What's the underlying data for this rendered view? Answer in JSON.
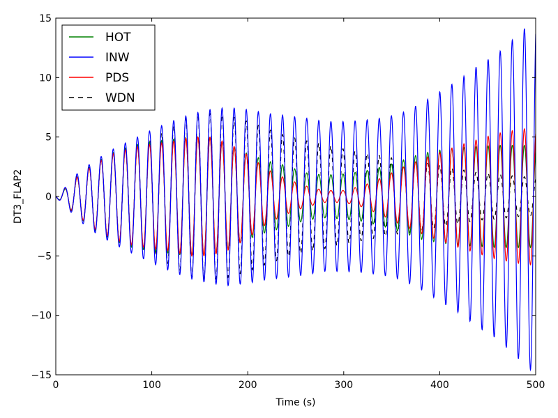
{
  "chart_data": {
    "type": "line",
    "title": "",
    "xlabel": "Time (s)",
    "ylabel": "DT3_FLAP2",
    "xlim": [
      0,
      500
    ],
    "ylim": [
      -15,
      15
    ],
    "xticks": [
      0,
      100,
      200,
      300,
      400,
      500
    ],
    "yticks": [
      -15,
      -10,
      -5,
      0,
      5,
      10,
      15
    ],
    "ytick_labels": [
      "−15",
      "−10",
      "−5",
      "0",
      "5",
      "10",
      "15"
    ],
    "grid": false,
    "legend_position": "top-left",
    "period_s": 12.6,
    "series": [
      {
        "name": "HOT",
        "color": "#008000",
        "dash": "solid",
        "envelope": [
          [
            0,
            0.1
          ],
          [
            8,
            0.5
          ],
          [
            22,
            1.6
          ],
          [
            40,
            2.8
          ],
          [
            60,
            3.7
          ],
          [
            80,
            4.3
          ],
          [
            100,
            4.6
          ],
          [
            120,
            4.8
          ],
          [
            140,
            5.0
          ],
          [
            160,
            5.0
          ],
          [
            180,
            4.4
          ],
          [
            200,
            3.6
          ],
          [
            220,
            3.0
          ],
          [
            240,
            2.6
          ],
          [
            260,
            2.0
          ],
          [
            280,
            1.8
          ],
          [
            300,
            1.9
          ],
          [
            320,
            2.1
          ],
          [
            340,
            2.5
          ],
          [
            360,
            3.0
          ],
          [
            380,
            3.6
          ],
          [
            400,
            3.9
          ],
          [
            420,
            4.1
          ],
          [
            440,
            4.2
          ],
          [
            460,
            4.3
          ],
          [
            480,
            4.3
          ],
          [
            500,
            4.3
          ]
        ]
      },
      {
        "name": "INW",
        "color": "#0000ff",
        "dash": "solid",
        "envelope": [
          [
            0,
            0.1
          ],
          [
            8,
            0.6
          ],
          [
            22,
            1.9
          ],
          [
            40,
            3.0
          ],
          [
            60,
            4.0
          ],
          [
            80,
            4.8
          ],
          [
            100,
            5.6
          ],
          [
            120,
            6.3
          ],
          [
            140,
            6.9
          ],
          [
            160,
            7.3
          ],
          [
            180,
            7.5
          ],
          [
            200,
            7.3
          ],
          [
            220,
            7.0
          ],
          [
            240,
            6.8
          ],
          [
            260,
            6.6
          ],
          [
            280,
            6.3
          ],
          [
            300,
            6.3
          ],
          [
            320,
            6.4
          ],
          [
            340,
            6.6
          ],
          [
            360,
            7.0
          ],
          [
            380,
            7.8
          ],
          [
            400,
            8.8
          ],
          [
            420,
            9.8
          ],
          [
            440,
            11.0
          ],
          [
            460,
            12.0
          ],
          [
            480,
            13.5
          ],
          [
            500,
            15.0
          ]
        ]
      },
      {
        "name": "PDS",
        "color": "#ff0000",
        "dash": "solid",
        "envelope": [
          [
            0,
            0.1
          ],
          [
            8,
            0.6
          ],
          [
            22,
            1.6
          ],
          [
            40,
            2.7
          ],
          [
            60,
            3.6
          ],
          [
            80,
            4.1
          ],
          [
            100,
            4.4
          ],
          [
            120,
            4.6
          ],
          [
            140,
            5.0
          ],
          [
            160,
            5.0
          ],
          [
            180,
            4.5
          ],
          [
            200,
            3.5
          ],
          [
            220,
            2.3
          ],
          [
            240,
            1.5
          ],
          [
            260,
            0.9
          ],
          [
            280,
            0.5
          ],
          [
            300,
            0.5
          ],
          [
            320,
            0.9
          ],
          [
            340,
            1.6
          ],
          [
            360,
            2.4
          ],
          [
            380,
            3.1
          ],
          [
            400,
            3.7
          ],
          [
            420,
            4.3
          ],
          [
            440,
            4.8
          ],
          [
            460,
            5.3
          ],
          [
            480,
            5.6
          ],
          [
            500,
            5.8
          ]
        ]
      },
      {
        "name": "WDN",
        "color": "#000000",
        "dash": "dashed",
        "envelope": [
          [
            0,
            0.1
          ],
          [
            8,
            0.6
          ],
          [
            22,
            1.7
          ],
          [
            40,
            2.8
          ],
          [
            60,
            3.6
          ],
          [
            80,
            4.3
          ],
          [
            100,
            4.8
          ],
          [
            120,
            5.8
          ],
          [
            140,
            6.8
          ],
          [
            160,
            7.0
          ],
          [
            180,
            6.8
          ],
          [
            200,
            6.3
          ],
          [
            220,
            5.7
          ],
          [
            240,
            5.1
          ],
          [
            260,
            4.7
          ],
          [
            280,
            4.4
          ],
          [
            300,
            4.0
          ],
          [
            320,
            3.7
          ],
          [
            340,
            3.4
          ],
          [
            360,
            3.1
          ],
          [
            380,
            2.9
          ],
          [
            400,
            2.6
          ],
          [
            420,
            2.3
          ],
          [
            440,
            2.0
          ],
          [
            460,
            1.9
          ],
          [
            480,
            1.7
          ],
          [
            500,
            1.6
          ]
        ]
      }
    ]
  }
}
